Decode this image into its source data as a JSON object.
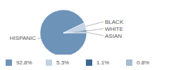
{
  "chart_data": {
    "type": "pie",
    "categories": [
      "HISPANIC",
      "BLACK",
      "WHITE",
      "ASIAN"
    ],
    "values": [
      92.8,
      5.3,
      1.1,
      0.8
    ],
    "value_labels": [
      "92.8%",
      "5.3%",
      "1.1%",
      "0.8%"
    ],
    "colors": [
      "#6e93b9",
      "#c3d3e4",
      "#3d6690",
      "#a6bbd0"
    ],
    "legend": "bottom"
  }
}
